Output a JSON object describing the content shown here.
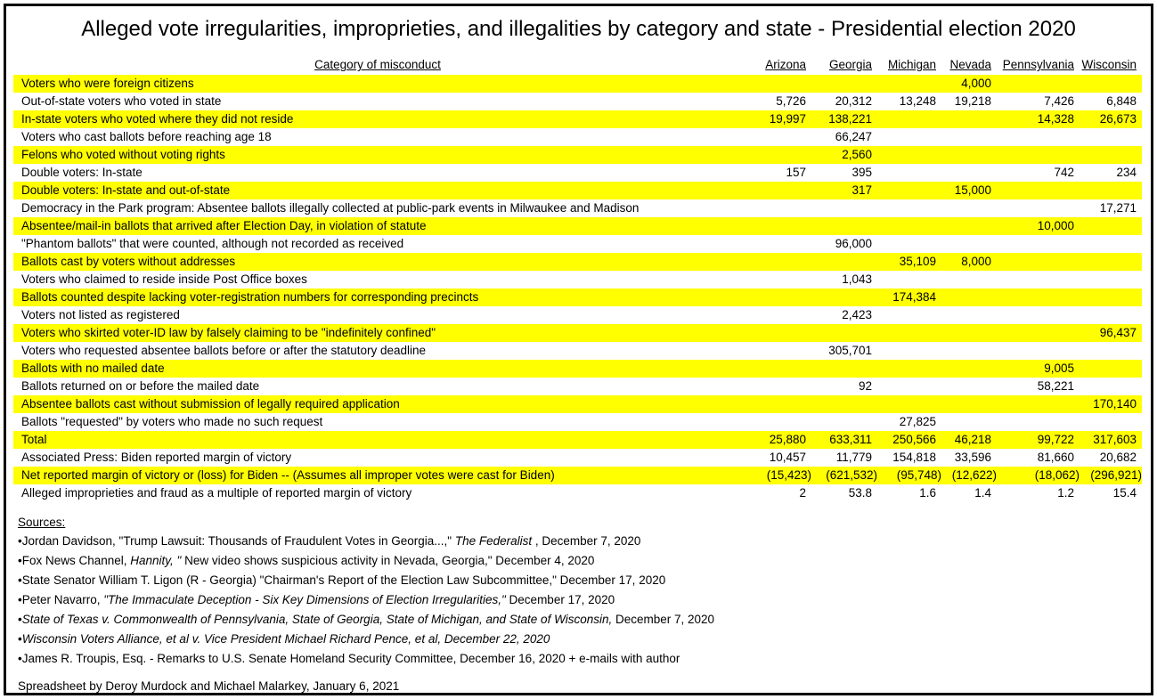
{
  "title": "Alleged vote irregularities, improprieties, and illegalities by category and state - Presidential election 2020",
  "colors": {
    "row_highlight": "#ffff00",
    "text": "#000000",
    "border": "#000000",
    "background": "#ffffff"
  },
  "table": {
    "category_header": "Category of misconduct",
    "state_headers": [
      "Arizona",
      "Georgia",
      "Michigan",
      "Nevada",
      "Pennsylvania",
      "Wisconsin"
    ],
    "rows": [
      {
        "category": "Voters who were foreign citizens",
        "highlight": true,
        "values": [
          "",
          "",
          "",
          "4,000",
          "",
          ""
        ]
      },
      {
        "category": "Out-of-state voters who voted in state",
        "highlight": false,
        "values": [
          "5,726",
          "20,312",
          "13,248",
          "19,218",
          "7,426",
          "6,848"
        ]
      },
      {
        "category": "In-state voters who voted where they did not reside",
        "highlight": true,
        "values": [
          "19,997",
          "138,221",
          "",
          "",
          "14,328",
          "26,673"
        ]
      },
      {
        "category": "Voters who cast ballots before reaching age 18",
        "highlight": false,
        "values": [
          "",
          "66,247",
          "",
          "",
          "",
          ""
        ]
      },
      {
        "category": "Felons who voted without voting rights",
        "highlight": true,
        "values": [
          "",
          "2,560",
          "",
          "",
          "",
          ""
        ]
      },
      {
        "category": "Double voters: In-state",
        "highlight": false,
        "values": [
          "157",
          "395",
          "",
          "",
          "742",
          "234"
        ]
      },
      {
        "category": "Double voters: In-state and out-of-state",
        "highlight": true,
        "values": [
          "",
          "317",
          "",
          "15,000",
          "",
          ""
        ]
      },
      {
        "category": "Democracy in the Park program: Absentee ballots illegally collected at public-park events in Milwaukee and Madison",
        "highlight": false,
        "values": [
          "",
          "",
          "",
          "",
          "",
          "17,271"
        ]
      },
      {
        "category": "Absentee/mail-in ballots that arrived after Election Day, in violation of statute",
        "highlight": true,
        "values": [
          "",
          "",
          "",
          "",
          "10,000",
          ""
        ]
      },
      {
        "category": "\"Phantom ballots\" that were counted, although not recorded as received",
        "highlight": false,
        "values": [
          "",
          "96,000",
          "",
          "",
          "",
          ""
        ]
      },
      {
        "category": "Ballots cast by voters without addresses",
        "highlight": true,
        "values": [
          "",
          "",
          "35,109",
          "8,000",
          "",
          ""
        ]
      },
      {
        "category": "Voters who claimed to reside inside Post Office boxes",
        "highlight": false,
        "values": [
          "",
          "1,043",
          "",
          "",
          "",
          ""
        ]
      },
      {
        "category": "Ballots counted despite lacking voter-registration numbers for corresponding precincts",
        "highlight": true,
        "values": [
          "",
          "",
          "174,384",
          "",
          "",
          ""
        ]
      },
      {
        "category": "Voters not listed as registered",
        "highlight": false,
        "values": [
          "",
          "2,423",
          "",
          "",
          "",
          ""
        ]
      },
      {
        "category": "Voters who skirted voter-ID law by falsely claiming to be \"indefinitely confined\"",
        "highlight": true,
        "values": [
          "",
          "",
          "",
          "",
          "",
          "96,437"
        ]
      },
      {
        "category": "Voters who requested absentee ballots before or after the statutory deadline",
        "highlight": false,
        "values": [
          "",
          "305,701",
          "",
          "",
          "",
          ""
        ]
      },
      {
        "category": "Ballots with no mailed date",
        "highlight": true,
        "values": [
          "",
          "",
          "",
          "",
          "9,005",
          ""
        ]
      },
      {
        "category": "Ballots returned on or before the mailed date",
        "highlight": false,
        "values": [
          "",
          "92",
          "",
          "",
          "58,221",
          ""
        ]
      },
      {
        "category": "Absentee ballots cast without submission of legally required application",
        "highlight": true,
        "values": [
          "",
          "",
          "",
          "",
          "",
          "170,140"
        ]
      },
      {
        "category": "Ballots \"requested\" by voters who made no such request",
        "highlight": false,
        "values": [
          "",
          "",
          "27,825",
          "",
          "",
          ""
        ]
      },
      {
        "category": "Total",
        "highlight": true,
        "values": [
          "25,880",
          "633,311",
          "250,566",
          "46,218",
          "99,722",
          "317,603"
        ]
      },
      {
        "category": "Associated Press: Biden reported margin of victory",
        "highlight": false,
        "values": [
          "10,457",
          "11,779",
          "154,818",
          "33,596",
          "81,660",
          "20,682"
        ]
      },
      {
        "category": "Net reported margin of victory or (loss) for Biden -- (Assumes all improper votes were cast for Biden)",
        "highlight": true,
        "values": [
          "(15,423)",
          "(621,532)",
          "(95,748)",
          "(12,622)",
          "(18,062)",
          "(296,921)"
        ]
      },
      {
        "category": "Alleged improprieties and fraud as a multiple of reported margin of victory",
        "highlight": false,
        "values": [
          "2",
          "53.8",
          "1.6",
          "1.4",
          "1.2",
          "15.4"
        ]
      }
    ]
  },
  "sources": {
    "heading": "Sources:",
    "items": [
      {
        "segments": [
          {
            "text": "•Jordan Davidson, \"Trump Lawsuit: Thousands of Fraudulent Votes in Georgia...,\" ",
            "italic": false
          },
          {
            "text": "The Federalist",
            "italic": true
          },
          {
            "text": " , December 7, 2020",
            "italic": false
          }
        ]
      },
      {
        "segments": [
          {
            "text": "•Fox News Channel, ",
            "italic": false
          },
          {
            "text": "Hannity, \"",
            "italic": true
          },
          {
            "text": " New video shows suspicious activity in Nevada, Georgia,\" December 4, 2020",
            "italic": false
          }
        ]
      },
      {
        "segments": [
          {
            "text": "•State Senator William T. Ligon (R - Georgia) \"Chairman's Report of the Election Law Subcommittee,\" December 17, 2020",
            "italic": false
          }
        ]
      },
      {
        "segments": [
          {
            "text": "•Peter Navarro, ",
            "italic": false
          },
          {
            "text": "\"The Immaculate Deception - Six Key Dimensions of Election Irregularities,\"",
            "italic": true
          },
          {
            "text": " December 17, 2020",
            "italic": false
          }
        ]
      },
      {
        "segments": [
          {
            "text": "•",
            "italic": false
          },
          {
            "text": "State of Texas v. Commonwealth of Pennsylvania, State of Georgia, State of Michigan, and State of Wisconsin,",
            "italic": true
          },
          {
            "text": " December 7, 2020",
            "italic": false
          }
        ]
      },
      {
        "segments": [
          {
            "text": "•",
            "italic": false
          },
          {
            "text": "Wisconsin Voters Alliance, et al v. Vice President Michael Richard Pence, et al, December 22, 2020",
            "italic": true
          }
        ]
      },
      {
        "segments": [
          {
            "text": "•James R. Troupis, Esq. - Remarks to U.S. Senate Homeland Security Committee, December 16, 2020 + e-mails with author",
            "italic": false
          }
        ]
      }
    ]
  },
  "footer": "Spreadsheet by Deroy Murdock and Michael Malarkey, January 6, 2021"
}
